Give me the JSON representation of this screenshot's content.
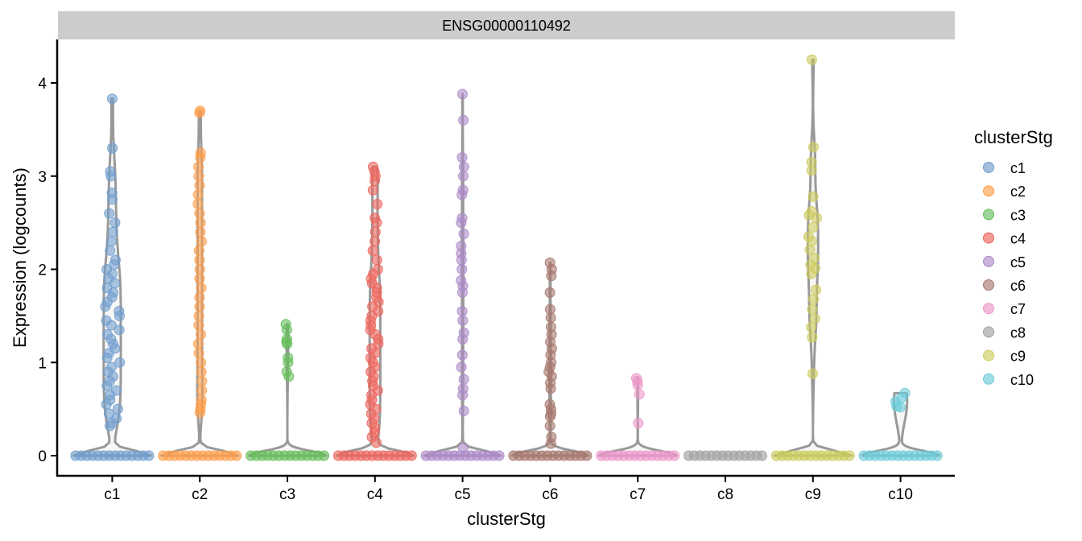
{
  "chart_data": {
    "type": "violin",
    "facet_title": "ENSG00000110492",
    "xlabel": "clusterStg",
    "ylabel": "Expression (logcounts)",
    "ylim": [
      -0.2,
      4.5
    ],
    "yticks": [
      0,
      1,
      2,
      3,
      4
    ],
    "grid": false,
    "legend": {
      "title": "clusterStg",
      "placement": "right",
      "items": [
        "c1",
        "c2",
        "c3",
        "c4",
        "c5",
        "c6",
        "c7",
        "c8",
        "c9",
        "c10"
      ]
    },
    "categories": [
      "c1",
      "c2",
      "c3",
      "c4",
      "c5",
      "c6",
      "c7",
      "c8",
      "c9",
      "c10"
    ],
    "colors": [
      "#729ECE",
      "#FF9E4A",
      "#67BF5C",
      "#ED665D",
      "#AD8BC9",
      "#A8786E",
      "#ED97CA",
      "#A2A2A2",
      "#CDCC5D",
      "#6DCCDA"
    ],
    "series": [
      {
        "name": "c1",
        "max": 3.83,
        "zero_fraction": 0.35,
        "points": [
          3.83,
          3.3,
          3.05,
          3.0,
          2.82,
          2.75,
          2.6,
          2.5,
          2.4,
          2.3,
          2.2,
          2.1,
          2.05,
          2.0,
          1.95,
          1.9,
          1.85,
          1.8,
          1.75,
          1.7,
          1.65,
          1.6,
          1.55,
          1.5,
          1.45,
          1.4,
          1.35,
          1.3,
          1.25,
          1.2,
          1.15,
          1.1,
          1.05,
          1.0,
          0.95,
          0.9,
          0.85,
          0.8,
          0.75,
          0.7,
          0.65,
          0.6,
          0.55,
          0.5,
          0.45,
          0.4,
          0.35,
          0.32
        ]
      },
      {
        "name": "c2",
        "max": 3.7,
        "zero_fraction": 0.6,
        "points": [
          3.7,
          3.68,
          3.25,
          3.2,
          3.1,
          3.0,
          2.9,
          2.8,
          2.7,
          2.6,
          2.5,
          2.4,
          2.3,
          2.2,
          2.1,
          2.0,
          1.9,
          1.8,
          1.7,
          1.6,
          1.5,
          1.4,
          1.3,
          1.2,
          1.1,
          1.0,
          0.9,
          0.8,
          0.7,
          0.6,
          0.55,
          0.5,
          0.46
        ]
      },
      {
        "name": "c3",
        "max": 1.41,
        "zero_fraction": 0.95,
        "points": [
          1.41,
          1.35,
          1.25,
          1.22,
          1.2,
          1.05,
          1.0,
          0.9,
          0.85
        ]
      },
      {
        "name": "c4",
        "max": 3.1,
        "zero_fraction": 0.45,
        "points": [
          3.1,
          3.05,
          3.0,
          2.95,
          2.85,
          2.7,
          2.55,
          2.5,
          2.4,
          2.3,
          2.2,
          2.1,
          2.0,
          1.95,
          1.9,
          1.85,
          1.8,
          1.75,
          1.7,
          1.65,
          1.6,
          1.55,
          1.5,
          1.45,
          1.4,
          1.35,
          1.3,
          1.25,
          1.2,
          1.15,
          1.1,
          1.05,
          1.0,
          0.95,
          0.9,
          0.85,
          0.8,
          0.75,
          0.7,
          0.65,
          0.6,
          0.55,
          0.5,
          0.45,
          0.4,
          0.35,
          0.3,
          0.25,
          0.2,
          0.14
        ]
      },
      {
        "name": "c5",
        "max": 3.88,
        "zero_fraction": 0.85,
        "points": [
          3.88,
          3.6,
          3.2,
          3.1,
          3.0,
          2.85,
          2.8,
          2.55,
          2.5,
          2.38,
          2.25,
          2.17,
          2.1,
          2.0,
          1.88,
          1.82,
          1.75,
          1.55,
          1.45,
          1.32,
          1.25,
          1.08,
          0.95,
          0.82,
          0.72,
          0.65,
          0.48,
          0.08
        ]
      },
      {
        "name": "c6",
        "max": 2.07,
        "zero_fraction": 0.9,
        "points": [
          2.07,
          2.0,
          1.93,
          1.75,
          1.57,
          1.48,
          1.38,
          1.3,
          1.22,
          1.15,
          1.08,
          1.0,
          0.95,
          0.9,
          0.85,
          0.78,
          0.72,
          0.55,
          0.5,
          0.45,
          0.42,
          0.32,
          0.2,
          0.13
        ]
      },
      {
        "name": "c7",
        "max": 0.83,
        "zero_fraction": 0.98,
        "points": [
          0.83,
          0.8,
          0.76,
          0.66,
          0.35
        ]
      },
      {
        "name": "c8",
        "max": 0.0,
        "zero_fraction": 1.0,
        "points": []
      },
      {
        "name": "c9",
        "max": 4.25,
        "zero_fraction": 0.55,
        "points": [
          4.25,
          3.31,
          3.15,
          3.06,
          2.78,
          2.62,
          2.58,
          2.55,
          2.45,
          2.35,
          2.3,
          2.21,
          2.12,
          2.05,
          2.01,
          1.95,
          1.78,
          1.68,
          1.57,
          1.47,
          1.38,
          1.27,
          0.88
        ]
      },
      {
        "name": "c10",
        "max": 0.67,
        "zero_fraction": 0.75,
        "points": [
          0.67,
          0.62,
          0.58,
          0.53,
          0.52
        ]
      }
    ]
  }
}
